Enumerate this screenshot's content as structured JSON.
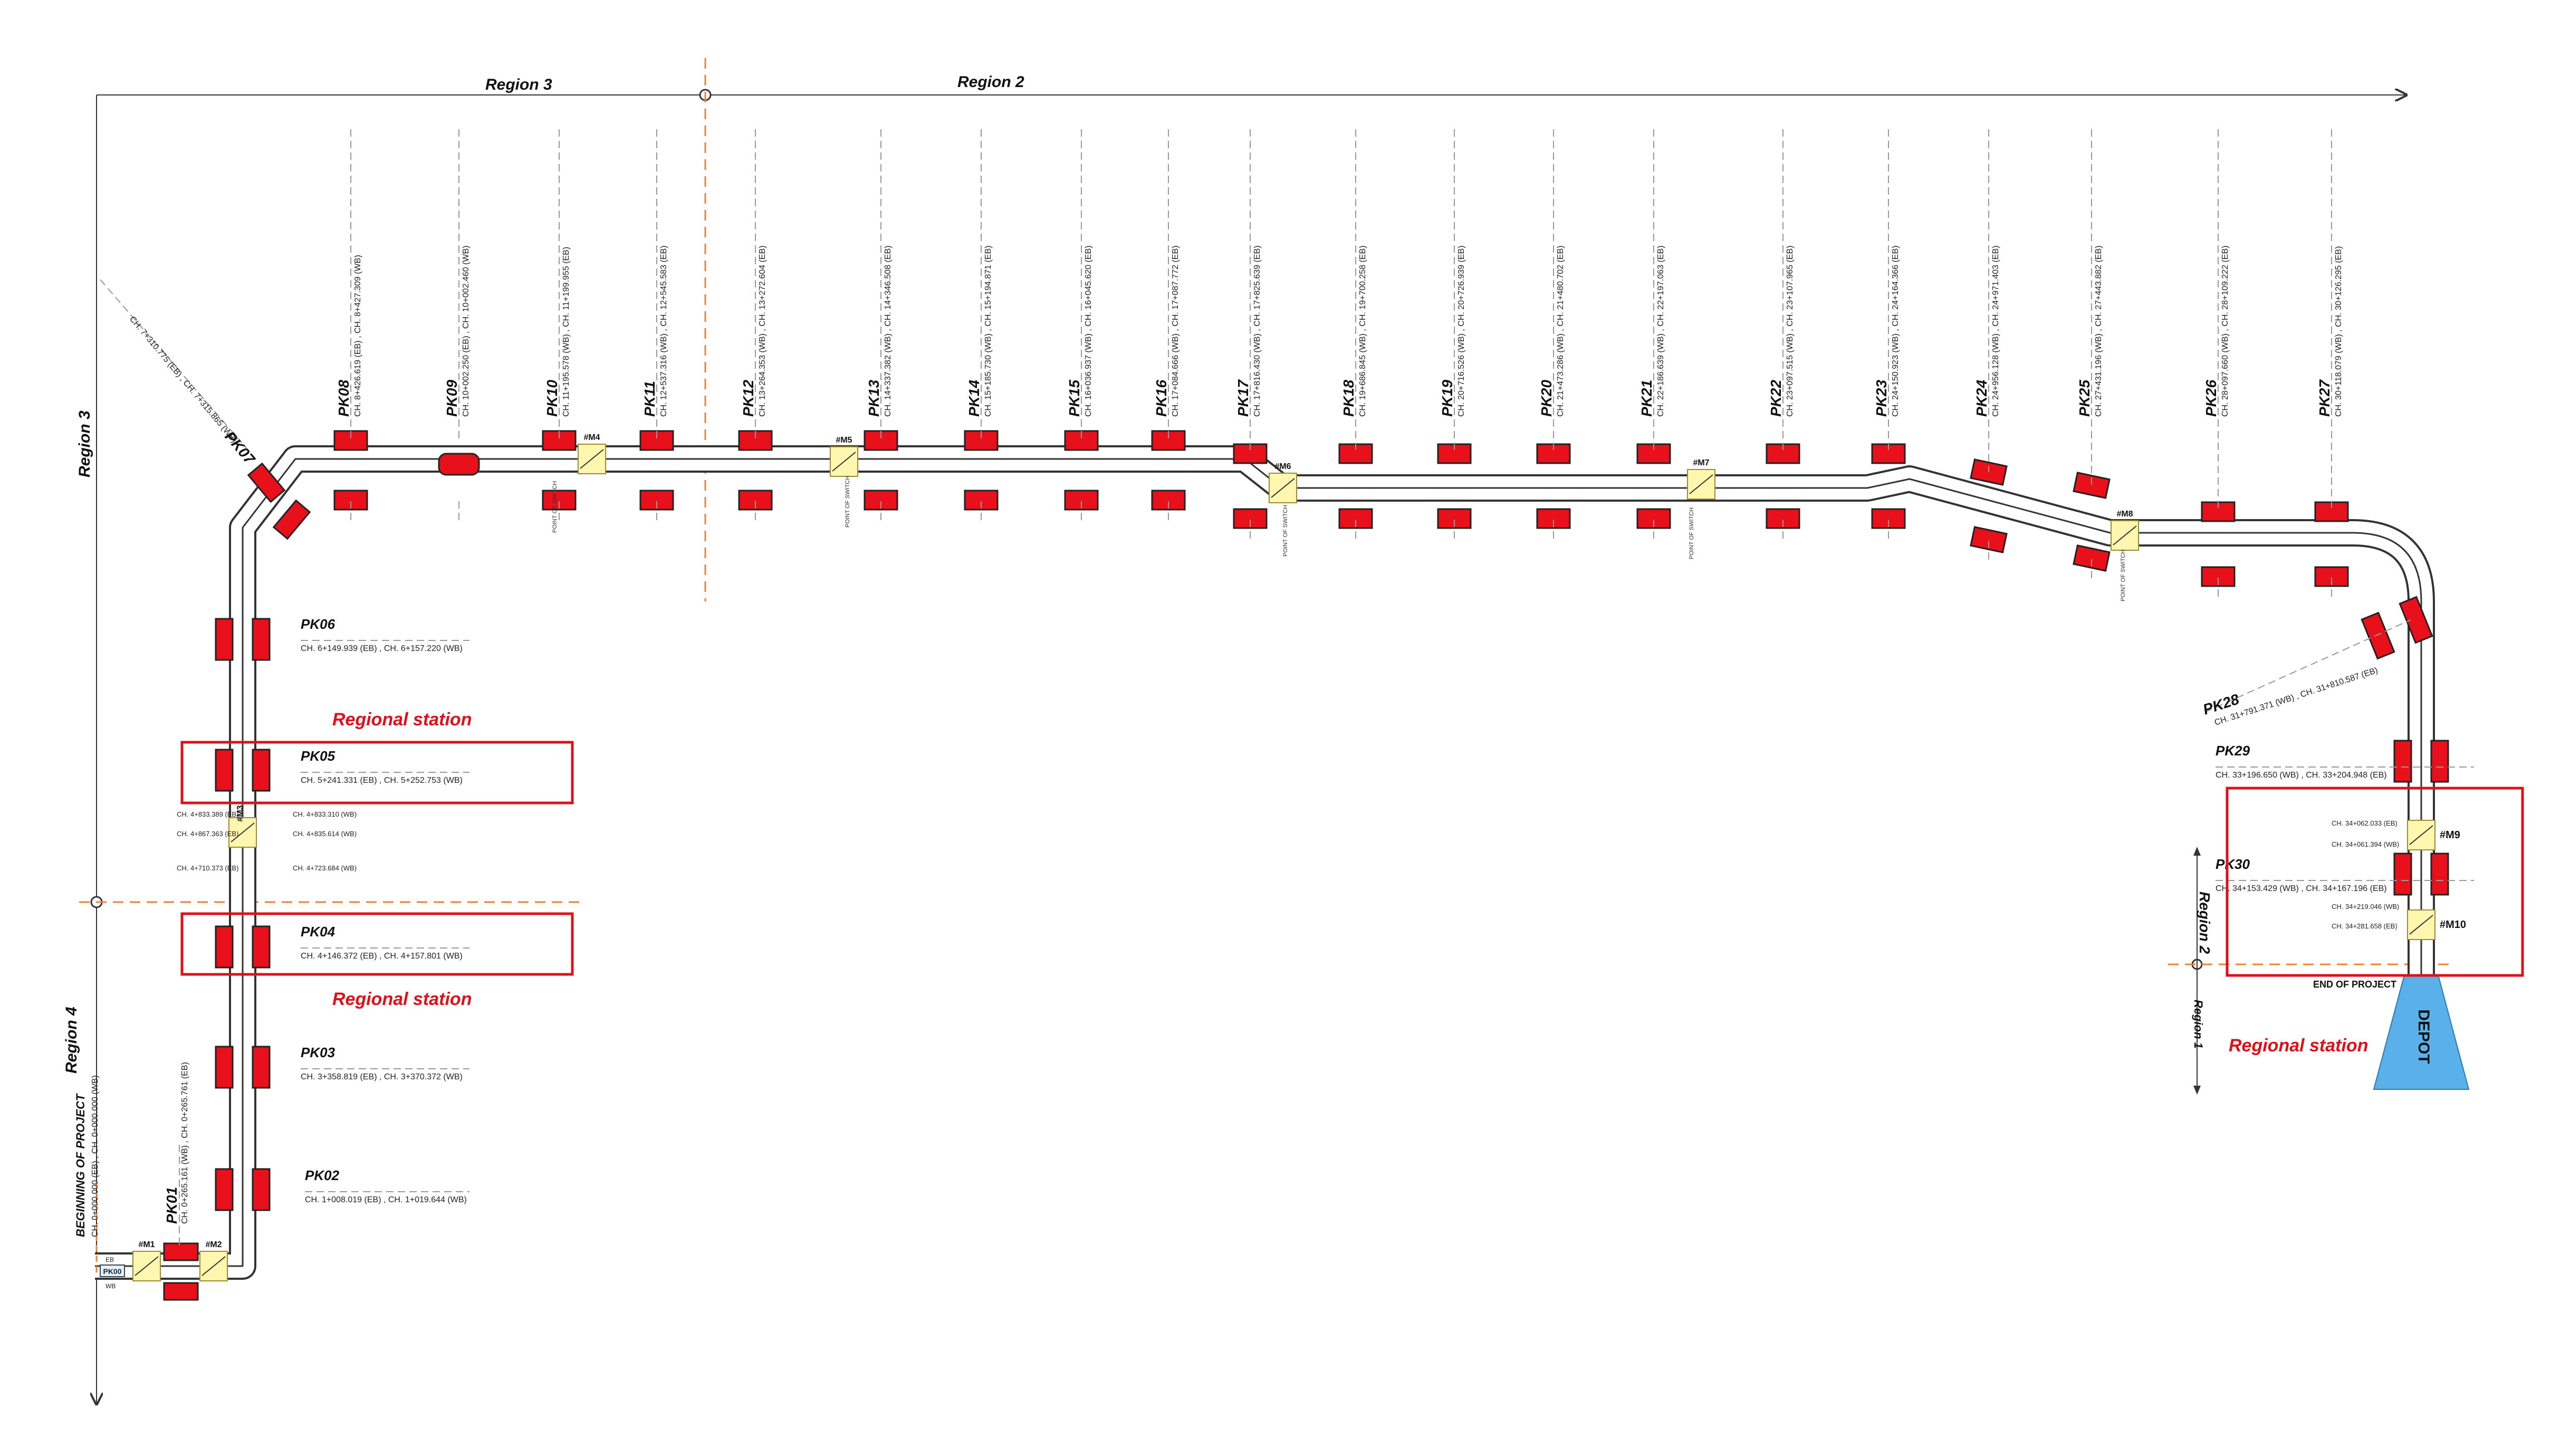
{
  "regions": {
    "r3_top": "Region 3",
    "r2_top": "Region 2",
    "r3_left": "Region 3",
    "r4_left": "Region 4",
    "r2_right": "Region 2",
    "r1_right": "Region 1"
  },
  "labels": {
    "regional_station_1": "Regional station",
    "regional_station_2": "Regional station",
    "regional_station_3": "Regional station",
    "beginning": "BEGINNING OF PROJECT",
    "beginning_ch": "CH. 0+000.000 (EB) , CH. 0+000.000 (WB)",
    "end": "END OF PROJECT",
    "depot": "DEPOT",
    "pk00": "PK00",
    "eb": "EB",
    "wb": "WB",
    "point_of_switch": "POINT OF SWITCH"
  },
  "pk_vertical": [
    {
      "id": "PK08",
      "ch": "CH. 8+426.619 (EB) , CH. 8+427.309 (WB)"
    },
    {
      "id": "PK09",
      "ch": "CH. 10+002.250 (EB) , CH. 10+002.460 (WB)"
    },
    {
      "id": "PK10",
      "ch": "CH. 11+195.578 (WB) , CH. 11+199.955 (EB)"
    },
    {
      "id": "PK11",
      "ch": "CH. 12+537.316 (WB) , CH. 12+545.583 (EB)"
    },
    {
      "id": "PK12",
      "ch": "CH. 13+264.353 (WB) , CH. 13+272.604 (EB)"
    },
    {
      "id": "PK13",
      "ch": "CH. 14+337.382 (WB) , CH. 14+346.508 (EB)"
    },
    {
      "id": "PK14",
      "ch": "CH. 15+185.730 (WB) , CH. 15+194.871 (EB)"
    },
    {
      "id": "PK15",
      "ch": "CH. 16+036.937 (WB) , CH. 16+045.620 (EB)"
    },
    {
      "id": "PK16",
      "ch": "CH. 17+084.666 (WB) , CH. 17+087.772 (EB)"
    },
    {
      "id": "PK17",
      "ch": "CH. 17+816.430 (WB) , CH. 17+825.639 (EB)"
    },
    {
      "id": "PK18",
      "ch": "CH. 19+686.845 (WB) , CH. 19+700.258 (EB)"
    },
    {
      "id": "PK19",
      "ch": "CH. 20+716.526 (WB) , CH. 20+726.939 (EB)"
    },
    {
      "id": "PK20",
      "ch": "CH. 21+473.286 (WB) , CH. 21+480.702 (EB)"
    },
    {
      "id": "PK21",
      "ch": "CH. 22+186.639 (WB) , CH. 22+197.063 (EB)"
    },
    {
      "id": "PK22",
      "ch": "CH. 23+097.515 (WB) , CH. 23+107.965 (EB)"
    },
    {
      "id": "PK23",
      "ch": "CH. 24+150.923 (WB) , CH. 24+164.366 (EB)"
    },
    {
      "id": "PK24",
      "ch": "CH. 24+956.128 (WB) , CH. 24+971.403 (EB)"
    },
    {
      "id": "PK25",
      "ch": "CH. 27+431.196 (WB) , CH. 27+443.882 (EB)"
    },
    {
      "id": "PK26",
      "ch": "CH. 28+097.660 (WB) , CH. 28+109.222 (EB)"
    },
    {
      "id": "PK27",
      "ch": "CH. 30+118.079 (WB) , CH. 30+126.295 (EB)"
    }
  ],
  "pk_horizontal": [
    {
      "id": "PK06",
      "ch": "CH. 6+149.939 (EB) , CH. 6+157.220 (WB)"
    },
    {
      "id": "PK05",
      "ch": "CH. 5+241.331 (EB) , CH. 5+252.753 (WB)"
    },
    {
      "id": "PK04",
      "ch": "CH. 4+146.372 (EB) , CH. 4+157.801 (WB)"
    },
    {
      "id": "PK03",
      "ch": "CH. 3+358.819 (EB) , CH. 3+370.372 (WB)"
    },
    {
      "id": "PK02",
      "ch": "CH. 1+008.019 (EB) , CH. 1+019.644 (WB)"
    },
    {
      "id": "PK29",
      "ch": "CH. 33+196.650 (WB) , CH. 33+204.948 (EB)"
    },
    {
      "id": "PK30",
      "ch": "CH. 34+153.429 (WB) , CH. 34+167.196 (EB)"
    }
  ],
  "pk_other": [
    {
      "id": "PK01",
      "ch": "CH. 0+265.161 (WB) , CH. 0+265.761 (EB)"
    },
    {
      "id": "PK07",
      "ch": "CH. 7+310.775 (EB) , CH. 7+315.865 (WB)"
    },
    {
      "id": "PK28",
      "ch": "CH. 31+791.371 (WB) , CH. 31+810.587 (EB)"
    }
  ],
  "switches": [
    "#M1",
    "#M2",
    "#M3",
    "#M4",
    "#M5",
    "#M6",
    "#M7",
    "#M8",
    "#M9",
    "#M10"
  ],
  "switch_notes": {
    "m9a": "CH. 34+062.033 (EB)",
    "m9b": "CH. 34+061.394 (WB)",
    "m10a": "CH. 34+219.046 (WB)",
    "m10b": "CH. 34+281.658 (EB)",
    "m3a": "CH. 4+833.389 (EB)",
    "m3b": "CH. 4+867.363 (EB)",
    "m3c": "CH. 4+833.310 (WB)",
    "m3d": "CH. 4+835.614 (WB)",
    "m3e": "CH. 4+710.373 (EB)",
    "m3f": "CH. 4+723.684 (WB)"
  }
}
